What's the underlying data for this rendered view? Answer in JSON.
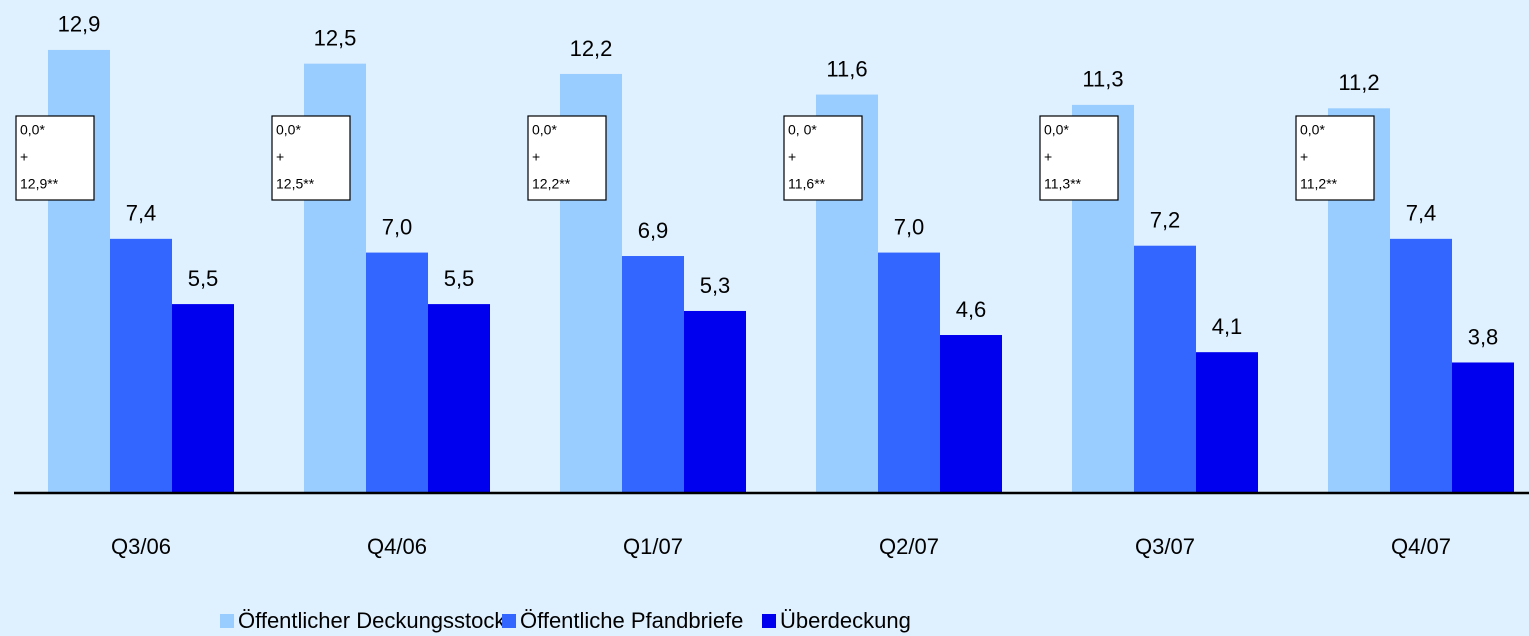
{
  "chart_data": {
    "type": "bar",
    "categories": [
      "Q3/06",
      "Q4/06",
      "Q1/07",
      "Q2/07",
      "Q3/07",
      "Q4/07"
    ],
    "series": [
      {
        "name": "Öffentlicher Deckungsstock",
        "color": "#99ccff",
        "values": [
          12.9,
          12.5,
          12.2,
          11.6,
          11.3,
          11.2
        ],
        "value_labels": [
          "12,9",
          "12,5",
          "12,2",
          "11,6",
          "11,3",
          "11,2"
        ]
      },
      {
        "name": "Öffentliche Pfandbriefe",
        "color": "#3366ff",
        "values": [
          7.4,
          7.0,
          6.9,
          7.0,
          7.2,
          7.4
        ],
        "value_labels": [
          "7,4",
          "7,0",
          "6,9",
          "7,0",
          "7,2",
          "7,4"
        ]
      },
      {
        "name": "Überdeckung",
        "color": "#0000ee",
        "values": [
          5.5,
          5.5,
          5.3,
          4.6,
          4.1,
          3.8
        ],
        "value_labels": [
          "5,5",
          "5,5",
          "5,3",
          "4,6",
          "4,1",
          "3,8"
        ]
      }
    ],
    "annotations": [
      [
        "0,0*",
        "+",
        "12,9**"
      ],
      [
        "0,0*",
        "+",
        "12,5**"
      ],
      [
        "0,0*",
        "+",
        "12,2**"
      ],
      [
        "0, 0*",
        "+",
        "11,6**"
      ],
      [
        "0,0*",
        "+",
        "11,3**"
      ],
      [
        "0,0*",
        "+",
        "11,2**"
      ]
    ],
    "ylim": [
      0,
      13
    ]
  }
}
